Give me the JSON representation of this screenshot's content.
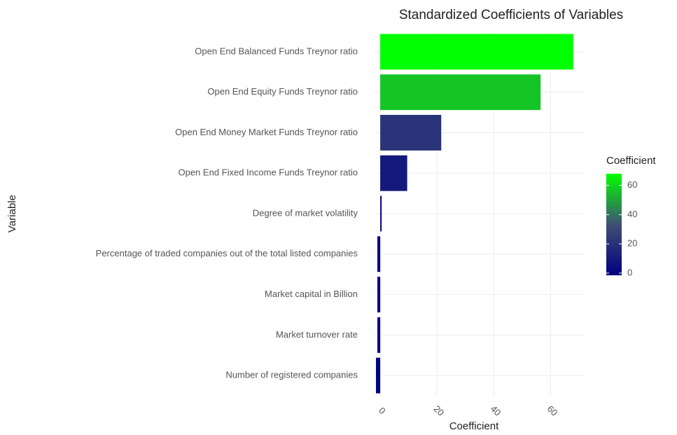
{
  "chart_data": {
    "type": "hbar",
    "title": "Standardized Coefficients of Variables",
    "x_label": "Coefficient",
    "y_label": "Variable",
    "legend_title": "Coefficient",
    "categories": [
      "Open End Balanced Funds Treynor  ratio",
      "Open End Equity Funds Treynor  ratio",
      "Open End Money Market Funds Treynor  ratio",
      "Open End Fixed Income Funds Treynor  ratio",
      "Degree of market volatility",
      "Percentage of traded companies out of the total listed companies",
      "Market capital in Billion",
      "Market turnover rate",
      "Number of registered companies"
    ],
    "values": [
      68,
      56.5,
      21.5,
      9.5,
      0.5,
      -1,
      -1,
      -1,
      -1.5
    ],
    "xlim": [
      -2,
      72
    ],
    "xticks": [
      0,
      20,
      40,
      60
    ],
    "legend_ticks": [
      0,
      20,
      40,
      60
    ],
    "gradient": [
      "#000080",
      "#3f4f74",
      "#00ff00"
    ],
    "grid": true
  }
}
